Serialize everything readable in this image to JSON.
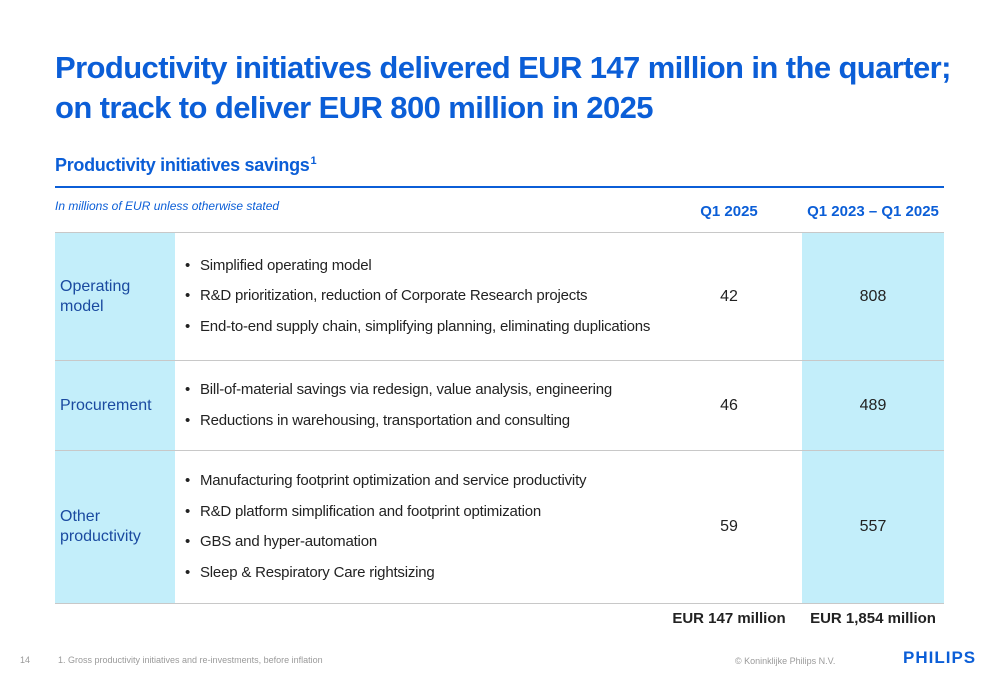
{
  "title": {
    "line1": "Productivity initiatives delivered EUR 147 million in the quarter;",
    "line2": "on track to deliver EUR 800 million in 2025"
  },
  "section": {
    "heading": "Productivity initiatives savings",
    "footnote_marker": "1"
  },
  "table": {
    "units_note": "In millions of EUR unless otherwise stated",
    "col_q1": "Q1 2025",
    "col_cumulative": "Q1 2023 – Q1 2025",
    "rows": [
      {
        "category": "Operating model",
        "bullets": [
          "Simplified operating model",
          "R&D prioritization, reduction of Corporate Research projects",
          "End-to-end supply chain, simplifying planning, eliminating duplications"
        ],
        "q1": "42",
        "cumulative": "808"
      },
      {
        "category": "Procurement",
        "bullets": [
          "Bill-of-material savings via redesign, value analysis, engineering",
          "Reductions in warehousing, transportation and consulting"
        ],
        "q1": "46",
        "cumulative": "489"
      },
      {
        "category": "Other productivity",
        "bullets": [
          "Manufacturing footprint optimization and service productivity",
          "R&D platform simplification and footprint optimization",
          "GBS and hyper-automation",
          "Sleep & Respiratory Care rightsizing"
        ],
        "q1": "59",
        "cumulative": "557"
      }
    ],
    "total_q1": "EUR 147 million",
    "total_cumulative": "EUR 1,854 million"
  },
  "footer": {
    "page_number": "14",
    "footnote": "1. Gross productivity initiatives and re-investments, before inflation",
    "copyright": "© Koninklijke Philips N.V.",
    "logo": "PHILIPS"
  },
  "colors": {
    "brand_blue": "#0b5ed7",
    "highlight_cyan": "#c3eefa"
  }
}
